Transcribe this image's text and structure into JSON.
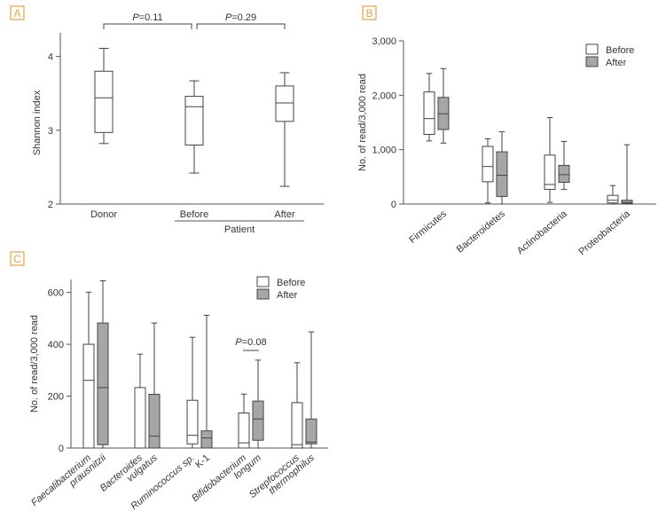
{
  "chart_data": [
    {
      "panel_label": "A",
      "type": "boxplot",
      "ylabel": "Shannon index",
      "ylim": [
        2,
        4.2
      ],
      "yticks": [
        "2",
        "3",
        "4"
      ],
      "categories": [
        "Donor",
        "Before",
        "After"
      ],
      "group_label": "Patient",
      "boxes": [
        {
          "category": "Donor",
          "min": 2.82,
          "q1": 2.97,
          "median": 3.44,
          "q3": 3.8,
          "max": 4.11
        },
        {
          "category": "Before",
          "min": 2.42,
          "q1": 2.8,
          "median": 3.32,
          "q3": 3.46,
          "max": 3.67
        },
        {
          "category": "After",
          "min": 2.24,
          "q1": 3.12,
          "median": 3.37,
          "q3": 3.6,
          "max": 3.78
        }
      ],
      "annotations": [
        {
          "between": [
            "Donor",
            "Before"
          ],
          "p_letter": "P",
          "p_value": "=0.11"
        },
        {
          "between": [
            "Before",
            "After"
          ],
          "p_letter": "P",
          "p_value": "=0.29"
        }
      ]
    },
    {
      "panel_label": "B",
      "type": "boxplot",
      "ylabel": "No. of read/3,000 read",
      "ylim": [
        0,
        3000
      ],
      "yticks": [
        "0",
        "1,000",
        "2,000",
        "3,000"
      ],
      "categories": [
        "Firmicutes",
        "Bacteroidetes",
        "Actinobacteria",
        "Proteobacteria"
      ],
      "legend": [
        "Before",
        "After"
      ],
      "series": [
        {
          "name": "Before",
          "boxes": [
            {
              "min": 1160,
              "q1": 1280,
              "median": 1570,
              "q3": 2060,
              "max": 2400
            },
            {
              "min": 20,
              "q1": 410,
              "median": 690,
              "q3": 1060,
              "max": 1200
            },
            {
              "min": 30,
              "q1": 270,
              "median": 360,
              "q3": 900,
              "max": 1590
            },
            {
              "min": 0,
              "q1": 20,
              "median": 70,
              "q3": 160,
              "max": 340
            }
          ]
        },
        {
          "name": "After",
          "boxes": [
            {
              "min": 1120,
              "q1": 1370,
              "median": 1660,
              "q3": 1960,
              "max": 2490
            },
            {
              "min": 0,
              "q1": 140,
              "median": 530,
              "q3": 960,
              "max": 1330
            },
            {
              "min": 270,
              "q1": 400,
              "median": 540,
              "q3": 710,
              "max": 1150
            },
            {
              "min": 0,
              "q1": 10,
              "median": 30,
              "q3": 70,
              "max": 1090
            }
          ]
        }
      ]
    },
    {
      "panel_label": "C",
      "type": "boxplot",
      "ylabel": "No. of read/3,000 read",
      "ylim": [
        0,
        650
      ],
      "yticks": [
        "0",
        "200",
        "400",
        "600"
      ],
      "categories": [
        {
          "line1": "Faecalibacterium",
          "line2": "prausnitzii"
        },
        {
          "line1": "Bacteroides",
          "line2": "vulgatus"
        },
        {
          "line1": "Ruminococcus sp.",
          "line2": "K-1"
        },
        {
          "line1": "Bifidobacterium",
          "line2": "longum"
        },
        {
          "line1": "Strepfococcus",
          "line2": "thermophilus"
        }
      ],
      "legend": [
        "Before",
        "After"
      ],
      "series": [
        {
          "name": "Before",
          "boxes": [
            {
              "min": 0,
              "q1": 0,
              "median": 261,
              "q3": 400,
              "max": 601
            },
            {
              "min": 0,
              "q1": 0,
              "median": 0,
              "q3": 233,
              "max": 362
            },
            {
              "min": 0,
              "q1": 16,
              "median": 49,
              "q3": 184,
              "max": 427
            },
            {
              "min": 0,
              "q1": 0,
              "median": 20,
              "q3": 135,
              "max": 208
            },
            {
              "min": 0,
              "q1": 0,
              "median": 13,
              "q3": 175,
              "max": 329
            }
          ]
        },
        {
          "name": "After",
          "boxes": [
            {
              "min": 0,
              "q1": 13,
              "median": 233,
              "q3": 482,
              "max": 645
            },
            {
              "min": 0,
              "q1": 0,
              "median": 46,
              "q3": 207,
              "max": 482
            },
            {
              "min": 0,
              "q1": 0,
              "median": 39,
              "q3": 66,
              "max": 512
            },
            {
              "min": 0,
              "q1": 30,
              "median": 112,
              "q3": 181,
              "max": 339
            },
            {
              "min": 0,
              "q1": 16,
              "median": 23,
              "q3": 112,
              "max": 448
            }
          ]
        }
      ],
      "annotations": [
        {
          "category_index": 3,
          "p_letter": "P",
          "p_value": "=0.08"
        }
      ]
    }
  ],
  "colors": {
    "before_fill": "#ffffff",
    "after_fill": "#a6a6a6",
    "panel_label_border": "#e8a33d",
    "panel_label_text": "#e8a33d",
    "stroke": "#444444"
  }
}
